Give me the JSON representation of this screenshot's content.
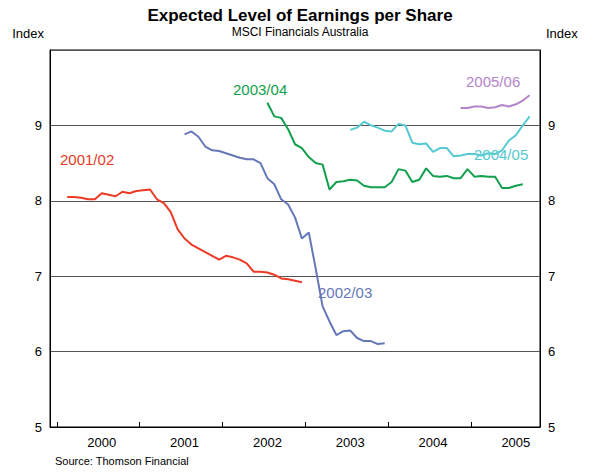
{
  "chart_data": {
    "type": "line",
    "title": "Expected Level of Earnings per Share",
    "subtitle": "MSCI Financials Australia",
    "source": "Source: Thomson Financial",
    "y_label": "Index",
    "y2_label": "Index",
    "ylim": [
      5,
      10
    ],
    "yticks": [
      5,
      6,
      7,
      8,
      9
    ],
    "y2lim": [
      5,
      10
    ],
    "y2ticks": [
      5,
      6,
      7,
      8,
      9
    ],
    "grid": true,
    "categories": [
      null,
      null,
      null,
      null,
      null,
      null,
      null,
      "2000",
      null,
      null,
      null,
      null,
      null,
      null,
      null,
      null,
      null,
      null,
      null,
      "2001",
      null,
      null,
      null,
      null,
      null,
      null,
      null,
      null,
      null,
      null,
      null,
      "2002",
      null,
      null,
      null,
      null,
      null,
      null,
      null,
      null,
      null,
      null,
      null,
      "2003",
      null,
      null,
      null,
      null,
      null,
      null,
      null,
      null,
      null,
      null,
      null,
      "2004",
      null,
      null,
      null,
      null,
      null,
      null,
      null,
      null,
      null,
      null,
      null,
      "2005",
      null,
      null,
      null
    ],
    "series": [
      {
        "name": "2001/02",
        "color": "#ec3a25",
        "values": [
          null,
          null,
          8.05,
          8.05,
          8.04,
          8.02,
          8.02,
          8.1,
          8.08,
          8.06,
          8.12,
          8.1,
          8.13,
          8.14,
          8.15,
          8.02,
          7.97,
          7.85,
          7.62,
          7.5,
          7.42,
          7.37,
          7.32,
          7.27,
          7.22,
          7.27,
          7.25,
          7.22,
          7.17,
          7.06,
          7.06,
          7.05,
          7.02,
          6.97,
          6.96,
          6.94,
          6.92,
          null,
          null,
          null,
          null,
          null,
          null,
          null,
          null,
          null,
          null,
          null,
          null,
          null,
          null,
          null,
          null,
          null,
          null,
          null,
          null,
          null,
          null,
          null,
          null,
          null,
          null,
          null,
          null,
          null,
          null,
          null,
          null,
          null,
          null
        ]
      },
      {
        "name": "2002/03",
        "color": "#6677b8",
        "values": [
          null,
          null,
          null,
          null,
          null,
          null,
          null,
          null,
          null,
          null,
          null,
          null,
          null,
          null,
          null,
          null,
          null,
          null,
          null,
          8.88,
          8.92,
          8.85,
          8.72,
          8.67,
          8.66,
          8.63,
          8.6,
          8.57,
          8.55,
          8.55,
          8.5,
          8.3,
          8.22,
          8.02,
          7.95,
          7.78,
          7.5,
          7.58,
          7.1,
          6.6,
          6.4,
          6.22,
          6.27,
          6.28,
          6.18,
          6.14,
          6.14,
          6.1,
          6.11,
          null,
          null,
          null,
          null,
          null,
          null,
          null,
          null,
          null,
          null,
          null,
          null,
          null,
          null,
          null,
          null,
          null,
          null,
          null,
          null,
          null,
          null
        ]
      },
      {
        "name": "2003/04",
        "color": "#12a04d",
        "values": [
          null,
          null,
          null,
          null,
          null,
          null,
          null,
          null,
          null,
          null,
          null,
          null,
          null,
          null,
          null,
          null,
          null,
          null,
          null,
          null,
          null,
          null,
          null,
          null,
          null,
          null,
          null,
          null,
          null,
          null,
          null,
          9.3,
          9.12,
          9.1,
          8.95,
          8.75,
          8.7,
          8.58,
          8.5,
          8.48,
          8.15,
          8.25,
          8.26,
          8.28,
          8.27,
          8.2,
          8.18,
          8.18,
          8.18,
          8.25,
          8.42,
          8.4,
          8.25,
          8.28,
          8.43,
          8.33,
          8.32,
          8.33,
          8.3,
          8.3,
          8.42,
          8.32,
          8.33,
          8.32,
          8.32,
          8.17,
          8.17,
          8.2,
          8.22,
          null,
          null
        ]
      },
      {
        "name": "2004/05",
        "color": "#55c9d2",
        "values": [
          null,
          null,
          null,
          null,
          null,
          null,
          null,
          null,
          null,
          null,
          null,
          null,
          null,
          null,
          null,
          null,
          null,
          null,
          null,
          null,
          null,
          null,
          null,
          null,
          null,
          null,
          null,
          null,
          null,
          null,
          null,
          null,
          null,
          null,
          null,
          null,
          null,
          null,
          null,
          null,
          null,
          null,
          null,
          8.94,
          8.97,
          9.05,
          9.0,
          8.97,
          8.93,
          8.92,
          9.02,
          9.0,
          8.77,
          8.75,
          8.76,
          8.65,
          8.7,
          8.7,
          8.59,
          8.6,
          8.62,
          8.62,
          8.6,
          8.63,
          8.62,
          8.67,
          8.8,
          8.87,
          9.0,
          9.12,
          null
        ]
      },
      {
        "name": "2005/06",
        "color": "#b484c9",
        "values": [
          null,
          null,
          null,
          null,
          null,
          null,
          null,
          null,
          null,
          null,
          null,
          null,
          null,
          null,
          null,
          null,
          null,
          null,
          null,
          null,
          null,
          null,
          null,
          null,
          null,
          null,
          null,
          null,
          null,
          null,
          null,
          null,
          null,
          null,
          null,
          null,
          null,
          null,
          null,
          null,
          null,
          null,
          null,
          null,
          null,
          null,
          null,
          null,
          null,
          null,
          null,
          null,
          null,
          null,
          null,
          null,
          null,
          null,
          null,
          9.23,
          9.23,
          9.25,
          9.25,
          9.23,
          9.24,
          9.27,
          9.25,
          9.28,
          9.33,
          9.4,
          null
        ]
      }
    ]
  }
}
